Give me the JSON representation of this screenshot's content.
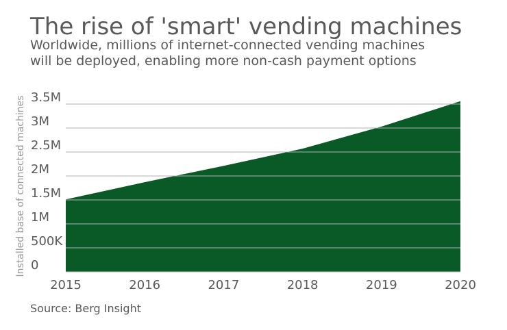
{
  "chart_data": {
    "type": "area",
    "title": "The rise of 'smart' vending machines",
    "subtitle_lines": [
      "Worldwide, millions of internet-connected vending machines",
      "will be deployed, enabling more non-cash payment options"
    ],
    "y_label": "Installed base of connected machines",
    "source": "Source: Berg Insight",
    "categories": [
      "2015",
      "2016",
      "2017",
      "2018",
      "2019",
      "2020"
    ],
    "values": [
      1510000,
      1870000,
      2210000,
      2570000,
      3030000,
      3560000
    ],
    "color": "#0a5a27",
    "ylim": [
      0,
      3500000
    ],
    "yticks": [
      0,
      {
        "value": 500000,
        "label": "500K"
      },
      {
        "value": 1000000,
        "label": "1M"
      },
      {
        "value": 1500000,
        "label": "1.5M"
      },
      {
        "value": 2000000,
        "label": "2M"
      },
      {
        "value": 2500000,
        "label": "2.5M"
      },
      {
        "value": 3000000,
        "label": "3M"
      },
      {
        "value": 3500000,
        "label": "3.5M"
      }
    ],
    "grid": true
  }
}
